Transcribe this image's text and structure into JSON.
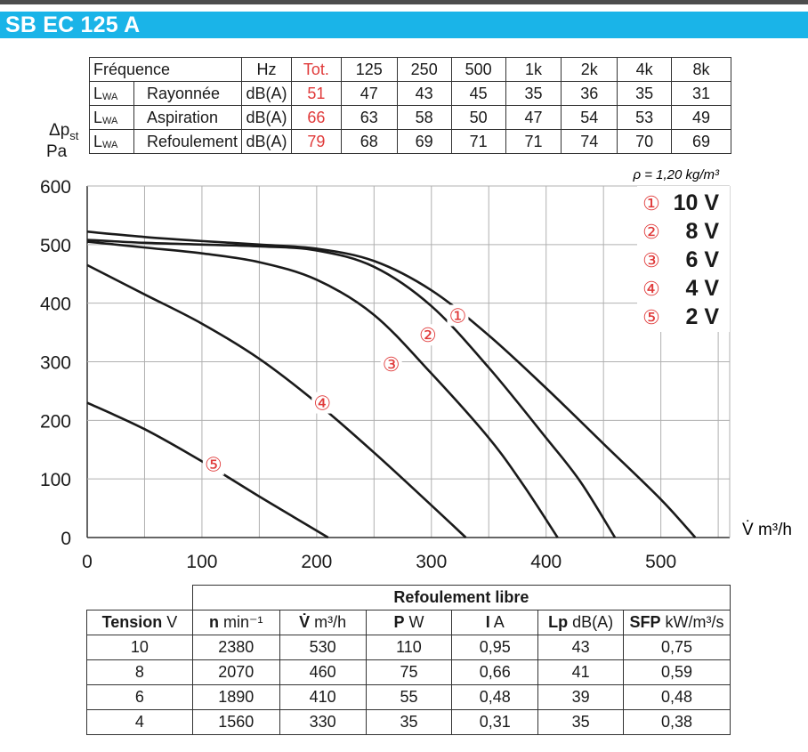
{
  "header": {
    "title": "SB EC 125 A"
  },
  "noise_table": {
    "columns": [
      "Fréquence",
      "Hz",
      "Tot.",
      "125",
      "250",
      "500",
      "1k",
      "2k",
      "4k",
      "8k"
    ],
    "rows": [
      {
        "prefix": "L",
        "sub": "WA",
        "label": "Rayonnée",
        "unit": "dB(A)",
        "values": [
          "51",
          "47",
          "43",
          "45",
          "35",
          "36",
          "35",
          "31"
        ]
      },
      {
        "prefix": "L",
        "sub": "WA",
        "label": "Aspiration",
        "unit": "dB(A)",
        "values": [
          "66",
          "63",
          "58",
          "50",
          "47",
          "54",
          "53",
          "49"
        ]
      },
      {
        "prefix": "L",
        "sub": "WA",
        "label": "Refoulement",
        "unit": "dB(A)",
        "values": [
          "79",
          "68",
          "69",
          "71",
          "71",
          "74",
          "70",
          "69"
        ]
      }
    ]
  },
  "chart_data": {
    "type": "line",
    "ylabel_main": "Δp",
    "ylabel_sub": "st",
    "ylabel_unit": "Pa",
    "xlabel": "V̇ m³/h",
    "xlim": [
      0,
      560
    ],
    "ylim": [
      0,
      600
    ],
    "xticks": [
      "0",
      "100",
      "200",
      "300",
      "400",
      "500"
    ],
    "yticks": [
      "0",
      "100",
      "200",
      "300",
      "400",
      "500",
      "600"
    ],
    "grid": true,
    "density_note": "ρ = 1,20 kg/m³",
    "legend_position": "top-right",
    "series": [
      {
        "name": "10 V",
        "marker": "①",
        "points": [
          [
            0,
            522
          ],
          [
            50,
            513
          ],
          [
            100,
            506
          ],
          [
            150,
            500
          ],
          [
            200,
            493
          ],
          [
            250,
            472
          ],
          [
            300,
            422
          ],
          [
            350,
            345
          ],
          [
            400,
            255
          ],
          [
            450,
            160
          ],
          [
            500,
            65
          ],
          [
            530,
            0
          ]
        ]
      },
      {
        "name": "8 V",
        "marker": "②",
        "points": [
          [
            0,
            508
          ],
          [
            50,
            503
          ],
          [
            100,
            500
          ],
          [
            150,
            497
          ],
          [
            200,
            490
          ],
          [
            250,
            462
          ],
          [
            300,
            395
          ],
          [
            350,
            290
          ],
          [
            400,
            170
          ],
          [
            430,
            95
          ],
          [
            460,
            0
          ]
        ]
      },
      {
        "name": "6 V",
        "marker": "③",
        "points": [
          [
            0,
            505
          ],
          [
            50,
            495
          ],
          [
            100,
            485
          ],
          [
            150,
            470
          ],
          [
            200,
            440
          ],
          [
            250,
            380
          ],
          [
            300,
            280
          ],
          [
            350,
            170
          ],
          [
            380,
            90
          ],
          [
            410,
            0
          ]
        ]
      },
      {
        "name": "4 V",
        "marker": "④",
        "points": [
          [
            0,
            465
          ],
          [
            50,
            415
          ],
          [
            100,
            365
          ],
          [
            150,
            305
          ],
          [
            200,
            230
          ],
          [
            250,
            145
          ],
          [
            300,
            55
          ],
          [
            330,
            0
          ]
        ]
      },
      {
        "name": "2 V",
        "marker": "⑤",
        "points": [
          [
            0,
            230
          ],
          [
            50,
            185
          ],
          [
            100,
            130
          ],
          [
            150,
            70
          ],
          [
            180,
            35
          ],
          [
            210,
            0
          ]
        ]
      }
    ],
    "labels": [
      {
        "marker": "①",
        "x": 323,
        "y": 379
      },
      {
        "marker": "②",
        "x": 297,
        "y": 346
      },
      {
        "marker": "③",
        "x": 265,
        "y": 296
      },
      {
        "marker": "④",
        "x": 205,
        "y": 230
      },
      {
        "marker": "⑤",
        "x": 110,
        "y": 125
      }
    ]
  },
  "perf_table": {
    "group_header": "Refoulement libre",
    "headers": [
      {
        "bold": "Tension",
        "unit": " V"
      },
      {
        "bold": "n",
        "unit": " min⁻¹"
      },
      {
        "bold": "V̇",
        "unit": " m³/h"
      },
      {
        "bold": "P",
        "unit": " W"
      },
      {
        "bold": "I",
        "unit": " A"
      },
      {
        "bold": "Lp",
        "unit": " dB(A)"
      },
      {
        "bold": "SFP",
        "unit": " kW/m³/s"
      }
    ],
    "rows": [
      [
        "10",
        "2380",
        "530",
        "110",
        "0,95",
        "43",
        "0,75"
      ],
      [
        "8",
        "2070",
        "460",
        "75",
        "0,66",
        "41",
        "0,59"
      ],
      [
        "6",
        "1890",
        "410",
        "55",
        "0,48",
        "39",
        "0,48"
      ],
      [
        "4",
        "1560",
        "330",
        "35",
        "0,31",
        "35",
        "0,38"
      ]
    ]
  },
  "colors": {
    "accent": "#1ab4e8",
    "red": "#e03a3a",
    "curve": "#1a1a1a",
    "grid": "#b0b0b0"
  }
}
